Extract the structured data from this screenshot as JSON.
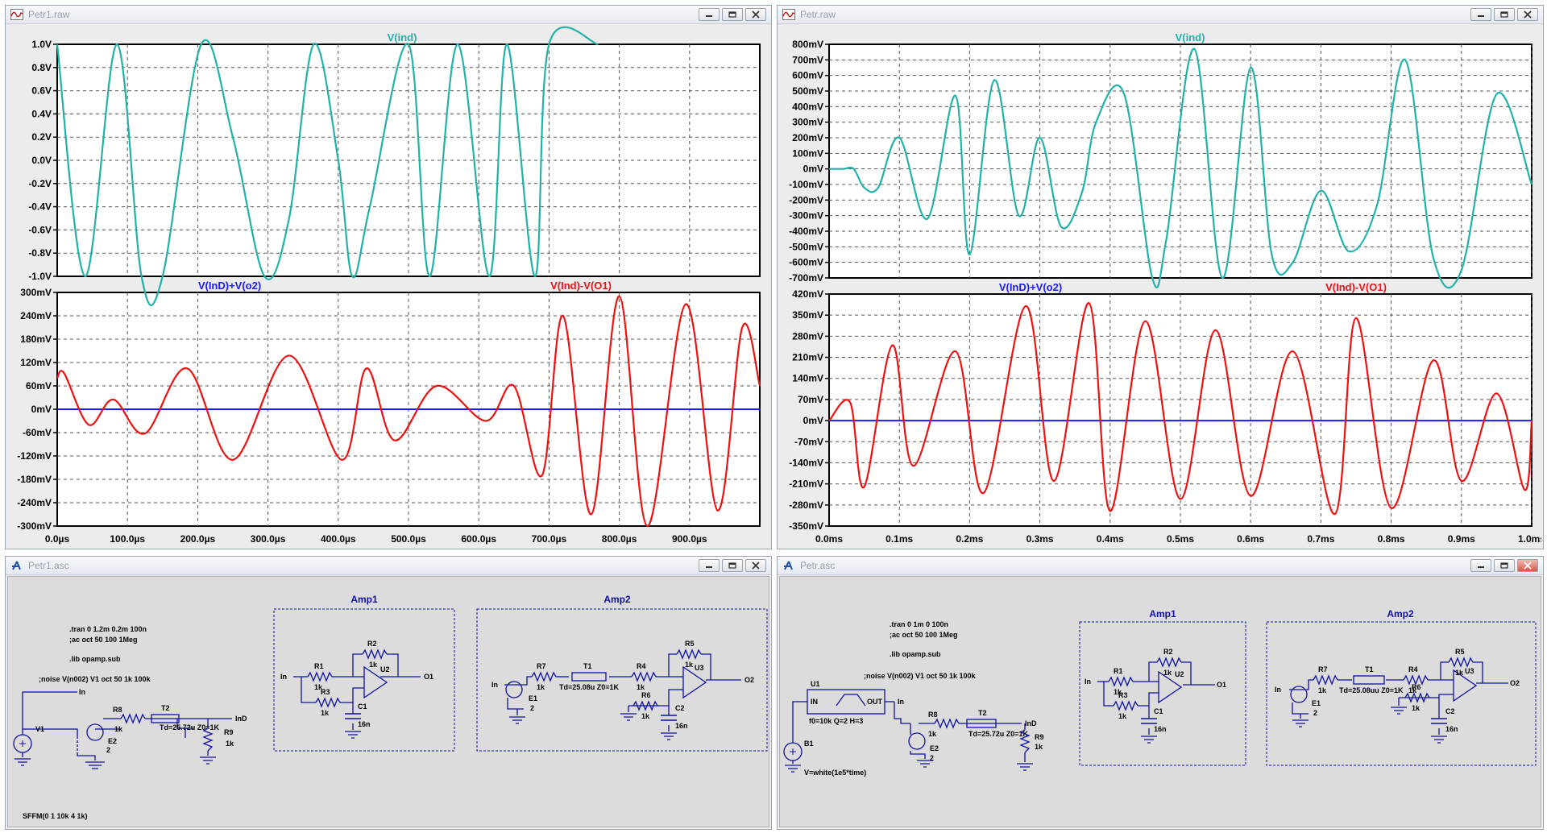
{
  "windows": {
    "w1": {
      "title": "Petr1.raw"
    },
    "w2": {
      "title": "Petr.raw"
    },
    "w3": {
      "title": "Petr1.asc"
    },
    "w4": {
      "title": "Petr.asc"
    }
  },
  "icons": {
    "waveform": "waveform-icon",
    "schematic": "schematic-icon",
    "minimize": "minimize-icon",
    "restore": "restore-icon",
    "close": "close-icon"
  },
  "colors": {
    "cyan": "#20b2aa",
    "red": "#ee1111",
    "blue": "#1a1aff",
    "schematic_line": "#1010a0"
  },
  "w1_plot": {
    "xticks": [
      "0.0µs",
      "100.0µs",
      "200.0µs",
      "300.0µs",
      "400.0µs",
      "500.0µs",
      "600.0µs",
      "700.0µs",
      "800.0µs",
      "900.0µs"
    ],
    "top_pane": {
      "trace_label": "V(ind)",
      "yticks": [
        "1.0V",
        "0.8V",
        "0.6V",
        "0.4V",
        "0.2V",
        "0.0V",
        "-0.2V",
        "-0.4V",
        "-0.6V",
        "-0.8V",
        "-1.0V"
      ]
    },
    "bottom_pane": {
      "trace_label_blue": "V(InD)+V(o2)",
      "trace_label_red": "V(Ind)-V(O1)",
      "yticks": [
        "300mV",
        "240mV",
        "180mV",
        "120mV",
        "60mV",
        "0mV",
        "-60mV",
        "-120mV",
        "-180mV",
        "-240mV",
        "-300mV"
      ]
    }
  },
  "w2_plot": {
    "xticks": [
      "0.0ms",
      "0.1ms",
      "0.2ms",
      "0.3ms",
      "0.4ms",
      "0.5ms",
      "0.6ms",
      "0.7ms",
      "0.8ms",
      "0.9ms",
      "1.0ms"
    ],
    "top_pane": {
      "trace_label": "V(ind)",
      "yticks": [
        "800mV",
        "700mV",
        "600mV",
        "500mV",
        "400mV",
        "300mV",
        "200mV",
        "100mV",
        "0mV",
        "-100mV",
        "-200mV",
        "-300mV",
        "-400mV",
        "-500mV",
        "-600mV",
        "-700mV"
      ]
    },
    "bottom_pane": {
      "trace_label_blue": "V(InD)+V(o2)",
      "trace_label_red": "V(Ind)-V(O1)",
      "yticks": [
        "420mV",
        "350mV",
        "280mV",
        "210mV",
        "140mV",
        "70mV",
        "0mV",
        "-70mV",
        "-140mV",
        "-210mV",
        "-280mV",
        "-350mV"
      ]
    }
  },
  "chart_data": [
    {
      "type": "line",
      "title": "V(ind)",
      "x_unit": "µs",
      "xlim": [
        0,
        1000
      ],
      "ylim": [
        -1.0,
        1.0
      ],
      "grid": true,
      "series": [
        {
          "name": "V(ind)",
          "color": "#20b2aa",
          "x": [
            0,
            40,
            85,
            120,
            150,
            205,
            250,
            295,
            330,
            365,
            400,
            420,
            445,
            500,
            530,
            570,
            615,
            640,
            680,
            700,
            770
          ],
          "y": [
            1.0,
            -1.0,
            1.0,
            -1.0,
            -1.0,
            1.0,
            0.2,
            -1.0,
            -0.5,
            1.0,
            0.0,
            -1.0,
            -0.4,
            1.0,
            -1.0,
            1.0,
            -1.0,
            1.0,
            -1.0,
            1.0,
            1.0
          ]
        }
      ]
    },
    {
      "type": "line",
      "title": "",
      "x_unit": "µs",
      "xlim": [
        0,
        1000
      ],
      "ylim": [
        -300,
        300
      ],
      "grid": true,
      "series": [
        {
          "name": "V(InD)+V(o2)",
          "color": "#1a1aff",
          "x": [
            0,
            250,
            500,
            750,
            1000
          ],
          "y": [
            0,
            0,
            0,
            0,
            0
          ]
        },
        {
          "name": "V(Ind)-V(O1)",
          "color": "#ee1111",
          "x": [
            0,
            10,
            45,
            80,
            125,
            185,
            250,
            330,
            405,
            440,
            480,
            540,
            610,
            650,
            690,
            720,
            760,
            800,
            840,
            895,
            940,
            975,
            1000
          ],
          "y": [
            80,
            92,
            -40,
            25,
            -62,
            105,
            -130,
            138,
            -130,
            105,
            -80,
            60,
            -30,
            60,
            -170,
            240,
            -270,
            290,
            -300,
            270,
            -260,
            210,
            60
          ]
        }
      ]
    },
    {
      "type": "line",
      "title": "V(ind)",
      "x_unit": "ms",
      "xlim": [
        0,
        1.0
      ],
      "ylim": [
        -700,
        800
      ],
      "grid": true,
      "series": [
        {
          "name": "V(ind)",
          "color": "#20b2aa",
          "x": [
            0,
            0.02,
            0.035,
            0.05,
            0.07,
            0.1,
            0.14,
            0.18,
            0.2,
            0.235,
            0.27,
            0.3,
            0.33,
            0.36,
            0.38,
            0.42,
            0.46,
            0.48,
            0.52,
            0.56,
            0.6,
            0.63,
            0.66,
            0.7,
            0.74,
            0.78,
            0.82,
            0.86,
            0.9,
            0.95,
            1.0
          ],
          "y": [
            0,
            0,
            0,
            -120,
            -120,
            200,
            -320,
            470,
            -550,
            570,
            -300,
            200,
            -370,
            -150,
            300,
            480,
            -700,
            -450,
            770,
            -700,
            650,
            -550,
            -600,
            -140,
            -530,
            -230,
            700,
            -570,
            -650,
            480,
            -100
          ]
        }
      ]
    },
    {
      "type": "line",
      "title": "",
      "x_unit": "ms",
      "xlim": [
        0,
        1.0
      ],
      "ylim": [
        -350,
        420
      ],
      "grid": true,
      "series": [
        {
          "name": "V(InD)+V(o2)",
          "color": "#1a1aff",
          "x": [
            0,
            0.25,
            0.5,
            0.75,
            1.0
          ],
          "y": [
            0,
            0,
            0,
            0,
            0
          ]
        },
        {
          "name": "V(Ind)-V(O1)",
          "color": "#ee1111",
          "x": [
            0,
            0.03,
            0.05,
            0.09,
            0.12,
            0.18,
            0.22,
            0.28,
            0.32,
            0.37,
            0.4,
            0.45,
            0.5,
            0.55,
            0.6,
            0.66,
            0.72,
            0.75,
            0.8,
            0.86,
            0.9,
            0.95,
            0.99,
            1.0
          ],
          "y": [
            0,
            60,
            -220,
            250,
            -150,
            230,
            -240,
            380,
            -200,
            390,
            -300,
            330,
            -260,
            300,
            -250,
            230,
            -310,
            340,
            -290,
            200,
            -200,
            90,
            -230,
            0
          ]
        }
      ]
    }
  ],
  "schem1": {
    "directives": {
      "tran": ".tran 0 1.2m 0.2m 100n",
      "ac": ";ac oct 50 100 1Meg",
      "lib": ".lib opamp.sub",
      "noise": ";noise V(n002) V1 oct 50 1k 100k"
    },
    "source_label": "SFFM(0 1 10k 4 1k)",
    "amp1": {
      "title": "Amp1",
      "in": "In",
      "out": "O1",
      "r1": [
        "R1",
        "1k"
      ],
      "r2": [
        "R2",
        "1k"
      ],
      "r3": [
        "R3",
        "1k"
      ],
      "c1": [
        "C1",
        "16n"
      ],
      "u": "U2"
    },
    "amp2": {
      "title": "Amp2",
      "in": "In",
      "out": "O2",
      "r7": [
        "R7",
        "1k"
      ],
      "t1": "T1",
      "td": "Td=25.08u Z0=1K",
      "r4": [
        "R4",
        "1k"
      ],
      "r5": [
        "R5",
        "1k"
      ],
      "r6": [
        "R6",
        "1k"
      ],
      "c2": [
        "C2",
        "16n"
      ],
      "u": "U3",
      "e": [
        "E1",
        "2"
      ]
    },
    "ind_net": {
      "in": "In",
      "v1": "V1",
      "r8": [
        "R8",
        "1k"
      ],
      "t2": "T2",
      "td": "Td=25.72u Z0=1K",
      "out": "InD",
      "r9": [
        "R9",
        "1k"
      ],
      "e": [
        "E2",
        "2"
      ]
    }
  },
  "schem2": {
    "directives": {
      "tran": ".tran 0 1m 0 100n",
      "ac": ";ac oct 50 100 1Meg",
      "lib": ".lib opamp.sub",
      "noise": ";noise V(n002) V1 oct 50 1k 100k"
    },
    "filter": {
      "u": "U1",
      "in": "IN",
      "out": "OUT",
      "params": "f0=10k Q=2 H=3",
      "net_out": "In"
    },
    "source": {
      "b": "B1",
      "expr": "V=white(1e5*time)"
    },
    "amp1": {
      "title": "Amp1",
      "in": "In",
      "out": "O1",
      "r1": [
        "R1",
        "1k"
      ],
      "r2": [
        "R2",
        "1k"
      ],
      "r3": [
        "R3",
        "1k"
      ],
      "c1": [
        "C1",
        "16n"
      ],
      "u": "U2"
    },
    "amp2": {
      "title": "Amp2",
      "in": "In",
      "out": "O2",
      "r7": [
        "R7",
        "1k"
      ],
      "t1": "T1",
      "td": "Td=25.08uu Z0=1K",
      "r4": [
        "R4",
        "1k"
      ],
      "r5": [
        "R5",
        "1k"
      ],
      "r6": [
        "R6",
        "1k"
      ],
      "c2": [
        "C2",
        "16n"
      ],
      "u": "U3",
      "e": [
        "E1",
        "2"
      ]
    },
    "ind_net": {
      "r8": [
        "R8",
        "1k"
      ],
      "t2": "T2",
      "td": "Td=25.72u Z0=1K",
      "out": "InD",
      "r9": [
        "R9",
        "1k"
      ],
      "e": [
        "E2",
        "2"
      ]
    }
  }
}
